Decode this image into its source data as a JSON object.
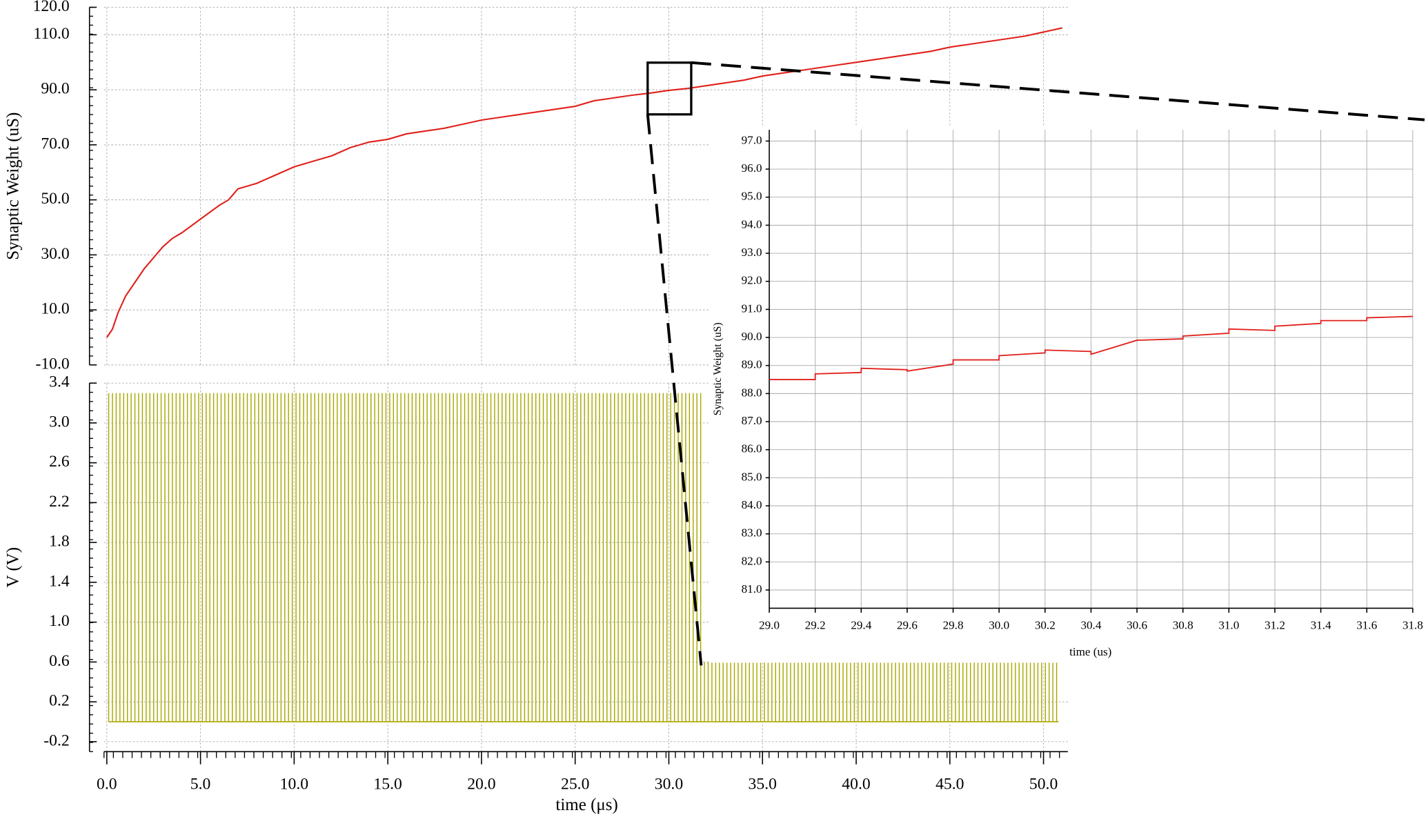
{
  "chart_data": [
    {
      "type": "line",
      "ylabel": "Synaptic Weight (uS)",
      "color": "#e0201b",
      "xlim": [
        -0.15,
        51.3
      ],
      "ylim": [
        -10,
        120
      ],
      "yticks": [
        {
          "value": -10,
          "label": "-10.0"
        },
        {
          "value": 10,
          "label": "10.0"
        },
        {
          "value": 30,
          "label": "30.0"
        },
        {
          "value": 50,
          "label": "50.0"
        },
        {
          "value": 70,
          "label": "70.0"
        },
        {
          "value": 90,
          "label": "90.0"
        },
        {
          "value": 110,
          "label": "110.0"
        },
        {
          "value": 120,
          "label": "120.0"
        }
      ],
      "x": [
        0,
        0.3,
        0.6,
        1,
        1.5,
        2,
        2.5,
        3,
        3.5,
        4,
        5,
        6,
        6.5,
        7,
        8,
        9,
        10,
        11,
        12,
        13,
        14,
        15,
        16,
        17,
        18,
        19,
        20,
        21,
        22,
        23,
        24,
        25,
        26,
        27,
        28,
        29,
        30,
        31,
        32,
        33,
        34,
        35,
        36,
        37,
        38,
        39,
        40,
        41,
        42,
        43,
        44,
        45,
        46,
        47,
        48,
        49,
        50,
        51
      ],
      "values": [
        0,
        3,
        9,
        15,
        20,
        25,
        29,
        33,
        36,
        38,
        43,
        48,
        50,
        54,
        56,
        59,
        62,
        64,
        66,
        69,
        71,
        72,
        74,
        75,
        76,
        77.5,
        79,
        80,
        81,
        82,
        83,
        84,
        86,
        87,
        88,
        88.8,
        89.8,
        90.5,
        91.5,
        92.5,
        93.5,
        95,
        96,
        97,
        98,
        99,
        100,
        101,
        102,
        103,
        104,
        105.5,
        106.5,
        107.5,
        108.5,
        109.5,
        111,
        112.5
      ]
    },
    {
      "type": "pulse",
      "xlabel": "time (μs)",
      "ylabel": "V (V)",
      "color": "#a8a800",
      "xlim": [
        -0.15,
        51.3
      ],
      "ylim": [
        -0.3,
        3.4
      ],
      "xticks": [
        {
          "value": 0,
          "label": "0.0"
        },
        {
          "value": 5,
          "label": "5.0"
        },
        {
          "value": 10,
          "label": "10.0"
        },
        {
          "value": 15,
          "label": "15.0"
        },
        {
          "value": 20,
          "label": "20.0"
        },
        {
          "value": 25,
          "label": "25.0"
        },
        {
          "value": 30,
          "label": "30.0"
        },
        {
          "value": 35,
          "label": "35.0"
        },
        {
          "value": 40,
          "label": "40.0"
        },
        {
          "value": 45,
          "label": "45.0"
        },
        {
          "value": 50,
          "label": "50.0"
        }
      ],
      "yticks": [
        -0.2,
        0.2,
        0.6,
        {
          "value": 1,
          "label": "1.0"
        },
        1.4,
        1.8,
        2.2,
        2.6,
        {
          "value": 3,
          "label": "3.0"
        },
        3.4
      ],
      "pulses": [
        {
          "start": 0.1,
          "end": 31.7,
          "period": 0.2,
          "amplitude": 3.3
        },
        {
          "start": 31.9,
          "end": 50.8,
          "period": 0.2,
          "amplitude": 0.6
        }
      ]
    },
    {
      "type": "line",
      "xlabel": "time (us)",
      "ylabel": "Synaptic Weight (uS)",
      "color": "#e0201b",
      "xlim": [
        29.0,
        31.8
      ],
      "ylim": [
        80.35,
        97.4
      ],
      "xticks": [
        {
          "value": 29,
          "label": "29.0"
        },
        29.2,
        29.4,
        29.6,
        29.8,
        {
          "value": 30,
          "label": "30.0"
        },
        30.2,
        30.4,
        30.6,
        30.8,
        {
          "value": 31,
          "label": "31.0"
        },
        31.2,
        31.4,
        31.6,
        31.8
      ],
      "yticks": [
        {
          "value": 81,
          "label": "81.0"
        },
        {
          "value": 82,
          "label": "82.0"
        },
        {
          "value": 83,
          "label": "83.0"
        },
        {
          "value": 84,
          "label": "84.0"
        },
        {
          "value": 85,
          "label": "85.0"
        },
        {
          "value": 86,
          "label": "86.0"
        },
        {
          "value": 87,
          "label": "87.0"
        },
        {
          "value": 88,
          "label": "88.0"
        },
        {
          "value": 89,
          "label": "89.0"
        },
        {
          "value": 90,
          "label": "90.0"
        },
        {
          "value": 91,
          "label": "91.0"
        },
        {
          "value": 92,
          "label": "92.0"
        },
        {
          "value": 93,
          "label": "93.0"
        },
        {
          "value": 94,
          "label": "94.0"
        },
        {
          "value": 95,
          "label": "95.0"
        },
        {
          "value": 96,
          "label": "96.0"
        },
        {
          "value": 97,
          "label": "97.0"
        }
      ],
      "x": [
        29.0,
        29.2,
        29.2,
        29.4,
        29.4,
        29.6,
        29.6,
        29.8,
        29.8,
        30.0,
        30.0,
        30.2,
        30.2,
        30.4,
        30.4,
        30.6,
        30.8,
        30.8,
        31.0,
        31.0,
        31.2,
        31.2,
        31.4,
        31.4,
        31.6,
        31.6,
        31.8
      ],
      "values": [
        88.5,
        88.5,
        88.7,
        88.75,
        88.9,
        88.85,
        88.8,
        89.05,
        89.2,
        89.2,
        89.35,
        89.45,
        89.55,
        89.5,
        89.4,
        89.9,
        89.95,
        90.05,
        90.15,
        90.3,
        90.25,
        90.4,
        90.5,
        90.6,
        90.6,
        90.7,
        90.75
      ]
    }
  ]
}
